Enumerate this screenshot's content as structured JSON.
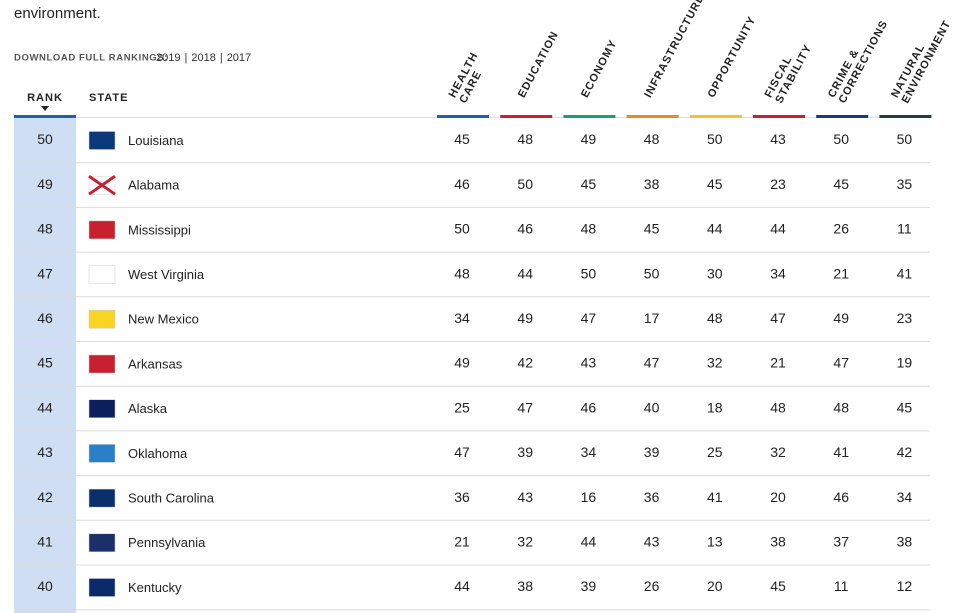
{
  "intro": "environment.",
  "download": {
    "label": "DOWNLOAD FULL RANKINGS:",
    "links": [
      "2019",
      "2018",
      "2017"
    ],
    "separator": "|"
  },
  "table": {
    "rank_header": "RANK",
    "state_header": "STATE",
    "columns": [
      {
        "lines": [
          "HEALTH",
          "CARE"
        ],
        "color": "#1f5fae"
      },
      {
        "lines": [
          "EDUCATION"
        ],
        "color": "#c8202f"
      },
      {
        "lines": [
          "ECONOMY"
        ],
        "color": "#1e9e6a"
      },
      {
        "lines": [
          "INFRASTRUCTURE"
        ],
        "color": "#e8892b"
      },
      {
        "lines": [
          "OPPORTUNITY"
        ],
        "color": "#f2c230"
      },
      {
        "lines": [
          "FISCAL",
          "STABILITY"
        ],
        "color": "#c8202f"
      },
      {
        "lines": [
          "CRIME &",
          "CORRECTIONS"
        ],
        "color": "#1b3a7a"
      },
      {
        "lines": [
          "NATURAL",
          "ENVIRONMENT"
        ],
        "color": "#2b3a3a"
      }
    ],
    "rows": [
      {
        "rank": "50",
        "state": "Louisiana",
        "values": [
          "45",
          "48",
          "49",
          "48",
          "50",
          "43",
          "50",
          "50"
        ]
      },
      {
        "rank": "49",
        "state": "Alabama",
        "values": [
          "46",
          "50",
          "45",
          "38",
          "45",
          "23",
          "45",
          "35"
        ]
      },
      {
        "rank": "48",
        "state": "Mississippi",
        "values": [
          "50",
          "46",
          "48",
          "45",
          "44",
          "44",
          "26",
          "11"
        ]
      },
      {
        "rank": "47",
        "state": "West Virginia",
        "values": [
          "48",
          "44",
          "50",
          "50",
          "30",
          "34",
          "21",
          "41"
        ]
      },
      {
        "rank": "46",
        "state": "New Mexico",
        "values": [
          "34",
          "49",
          "47",
          "17",
          "48",
          "47",
          "49",
          "23"
        ]
      },
      {
        "rank": "45",
        "state": "Arkansas",
        "values": [
          "49",
          "42",
          "43",
          "47",
          "32",
          "21",
          "47",
          "19"
        ]
      },
      {
        "rank": "44",
        "state": "Alaska",
        "values": [
          "25",
          "47",
          "46",
          "40",
          "18",
          "48",
          "48",
          "45"
        ]
      },
      {
        "rank": "43",
        "state": "Oklahoma",
        "values": [
          "47",
          "39",
          "34",
          "39",
          "25",
          "32",
          "41",
          "42"
        ]
      },
      {
        "rank": "42",
        "state": "South Carolina",
        "values": [
          "36",
          "43",
          "16",
          "36",
          "41",
          "20",
          "46",
          "34"
        ]
      },
      {
        "rank": "41",
        "state": "Pennsylvania",
        "values": [
          "21",
          "32",
          "44",
          "43",
          "13",
          "38",
          "37",
          "38"
        ]
      },
      {
        "rank": "40",
        "state": "Kentucky",
        "values": [
          "44",
          "38",
          "39",
          "26",
          "20",
          "45",
          "11",
          "12"
        ]
      }
    ]
  }
}
